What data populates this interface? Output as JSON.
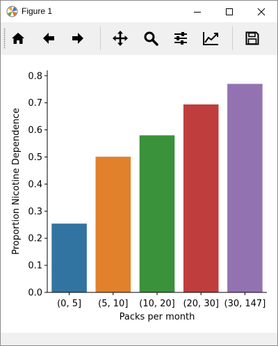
{
  "window": {
    "title": "Figure 1",
    "controls": {
      "minimize": "minimize-icon",
      "maximize": "maximize-icon",
      "close": "close-icon"
    }
  },
  "toolbar": {
    "buttons": [
      {
        "name": "home-button",
        "icon": "home-icon"
      },
      {
        "name": "back-button",
        "icon": "arrow-left-icon"
      },
      {
        "name": "forward-button",
        "icon": "arrow-right-icon"
      },
      {
        "name": "pan-button",
        "icon": "move-icon"
      },
      {
        "name": "zoom-button",
        "icon": "magnifier-icon"
      },
      {
        "name": "configure-subplots-button",
        "icon": "sliders-icon"
      },
      {
        "name": "edit-axis-button",
        "icon": "line-chart-icon"
      },
      {
        "name": "save-button",
        "icon": "floppy-disk-icon"
      }
    ]
  },
  "chart_data": {
    "type": "bar",
    "title": "",
    "xlabel": "Packs per month",
    "ylabel": "Proportion Nicotine Dependence",
    "categories": [
      "(0, 5]",
      "(5, 10]",
      "(10, 20]",
      "(20, 30]",
      "(30, 147]"
    ],
    "values": [
      0.254,
      0.501,
      0.58,
      0.694,
      0.77
    ],
    "colors": [
      "#3274a1",
      "#e1812c",
      "#3a923a",
      "#c03d3e",
      "#9372b2"
    ],
    "ylim": [
      0,
      0.82
    ],
    "yticks": [
      0.0,
      0.1,
      0.2,
      0.3,
      0.4,
      0.5,
      0.6,
      0.7,
      0.8
    ],
    "ytick_labels": [
      "0.0",
      "0.1",
      "0.2",
      "0.3",
      "0.4",
      "0.5",
      "0.6",
      "0.7",
      "0.8"
    ],
    "grid": false,
    "legend": "none"
  }
}
